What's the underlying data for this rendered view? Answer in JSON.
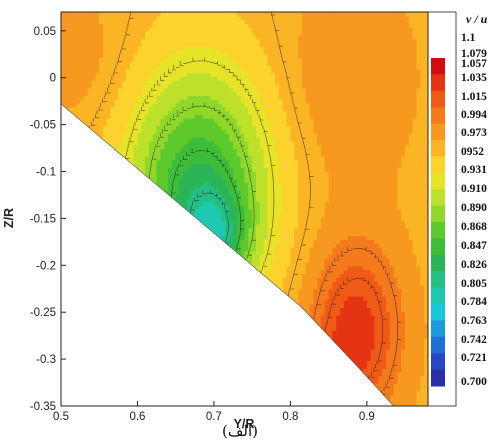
{
  "caption": "(الف)",
  "chart_data": {
    "type": "heatmap",
    "title": "",
    "xlabel": "Y/R",
    "ylabel": "Z/R",
    "xlim": [
      0.5,
      0.98
    ],
    "ylim": [
      -0.35,
      0.07
    ],
    "x_ticks": [
      "0.5",
      "0.6",
      "0.7",
      "0.8",
      "0.9"
    ],
    "y_ticks": [
      "0.05",
      "0",
      "-0.05",
      "-0.1",
      "-0.15",
      "-0.2",
      "-0.25",
      "-0.3",
      "-0.35"
    ],
    "legend": {
      "title": "v / u",
      "placement": "right",
      "levels": [
        "1.1",
        "1.079",
        "1.057",
        "1.035",
        "1.015",
        "0.994",
        "0.973",
        "0952",
        "0.931",
        "0.910",
        "0.890",
        "0.868",
        "0.847",
        "0.826",
        "0.805",
        "0.784",
        "0.763",
        "0.742",
        "0.721",
        "0.700"
      ],
      "colors": [
        "#d40c0c",
        "#e53412",
        "#ef5a16",
        "#f47a1c",
        "#f7991f",
        "#fbb424",
        "#fcd22c",
        "#e7e329",
        "#bde12a",
        "#8fd82b",
        "#5ec92c",
        "#3dbd3a",
        "#2bb557",
        "#26bf83",
        "#1fc8b1",
        "#1cc7dd",
        "#1a9bde",
        "#1e6fd6",
        "#2748c4",
        "#2a2ea8"
      ]
    },
    "field_notes": "Mean velocity ratio v/u: maximum (~1.08) in lower-right region near Y/R 0.83-0.92, Z/R -0.2 to -0.32; minimum (~0.75) near Y/R 0.69, Z/R -0.15; values ~0.97-1.03 in upper left and right."
  }
}
